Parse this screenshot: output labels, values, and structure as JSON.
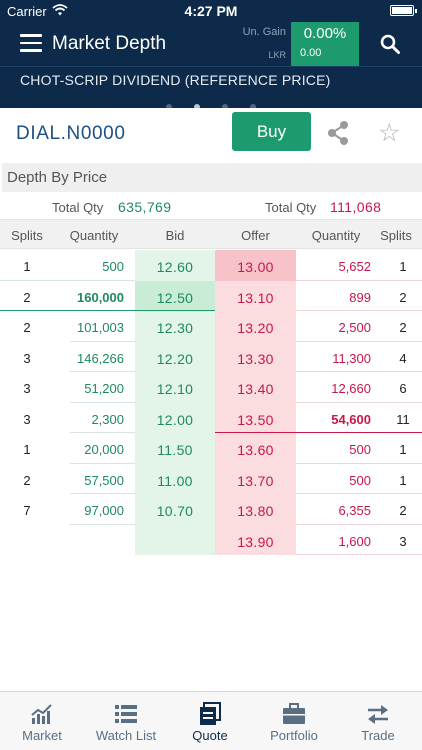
{
  "status_bar": {
    "carrier": "Carrier",
    "time": "4:27 PM"
  },
  "header": {
    "title": "Market Depth",
    "gain_label": "Un. Gain",
    "gain_percent": "0.00%",
    "currency_label": "LKR",
    "gain_value": "0.00"
  },
  "banner": {
    "text": "CHOT-SCRIP DIVIDEND (REFERENCE PRICE)",
    "page_count": 4,
    "active_page": 2
  },
  "symbol_bar": {
    "symbol": "DIAL.N0000",
    "buy_label": "Buy"
  },
  "section": {
    "title": "Depth By Price"
  },
  "totals": {
    "label_left": "Total Qty",
    "value_left": "635,769",
    "label_right": "Total Qty",
    "value_right": "111,068"
  },
  "columns": {
    "bid_splits": "Splits",
    "bid_qty": "Quantity",
    "bid": "Bid",
    "offer": "Offer",
    "offer_qty": "Quantity",
    "offer_splits": "Splits"
  },
  "rows": [
    {
      "bid_splits": "1",
      "bid_qty": "500",
      "bid": "12.60",
      "offer": "13.00",
      "offer_qty": "5,652",
      "offer_splits": "1"
    },
    {
      "bid_splits": "2",
      "bid_qty": "160,000",
      "bid": "12.50",
      "offer": "13.10",
      "offer_qty": "899",
      "offer_splits": "2"
    },
    {
      "bid_splits": "2",
      "bid_qty": "101,003",
      "bid": "12.30",
      "offer": "13.20",
      "offer_qty": "2,500",
      "offer_splits": "2"
    },
    {
      "bid_splits": "3",
      "bid_qty": "146,266",
      "bid": "12.20",
      "offer": "13.30",
      "offer_qty": "11,300",
      "offer_splits": "4"
    },
    {
      "bid_splits": "3",
      "bid_qty": "51,200",
      "bid": "12.10",
      "offer": "13.40",
      "offer_qty": "12,660",
      "offer_splits": "6"
    },
    {
      "bid_splits": "3",
      "bid_qty": "2,300",
      "bid": "12.00",
      "offer": "13.50",
      "offer_qty": "54,600",
      "offer_splits": "11"
    },
    {
      "bid_splits": "1",
      "bid_qty": "20,000",
      "bid": "11.50",
      "offer": "13.60",
      "offer_qty": "500",
      "offer_splits": "1"
    },
    {
      "bid_splits": "2",
      "bid_qty": "57,500",
      "bid": "11.00",
      "offer": "13.70",
      "offer_qty": "500",
      "offer_splits": "1"
    },
    {
      "bid_splits": "7",
      "bid_qty": "97,000",
      "bid": "10.70",
      "offer": "13.80",
      "offer_qty": "6,355",
      "offer_splits": "2"
    },
    {
      "bid_splits": "",
      "bid_qty": "",
      "bid": "",
      "offer": "13.90",
      "offer_qty": "1,600",
      "offer_splits": "3"
    }
  ],
  "tabs": [
    {
      "label": "Market",
      "icon": "chart-icon",
      "active": false
    },
    {
      "label": "Watch List",
      "icon": "list-icon",
      "active": false
    },
    {
      "label": "Quote",
      "icon": "quote-icon",
      "active": true
    },
    {
      "label": "Portfolio",
      "icon": "briefcase-icon",
      "active": false
    },
    {
      "label": "Trade",
      "icon": "transfer-icon",
      "active": false
    }
  ],
  "colors": {
    "navy": "#0d2a4a",
    "green": "#1e9b6e",
    "red": "#c8184a",
    "bid_bg": "#e3f5e9",
    "offer_bg": "#fbdcdf"
  }
}
